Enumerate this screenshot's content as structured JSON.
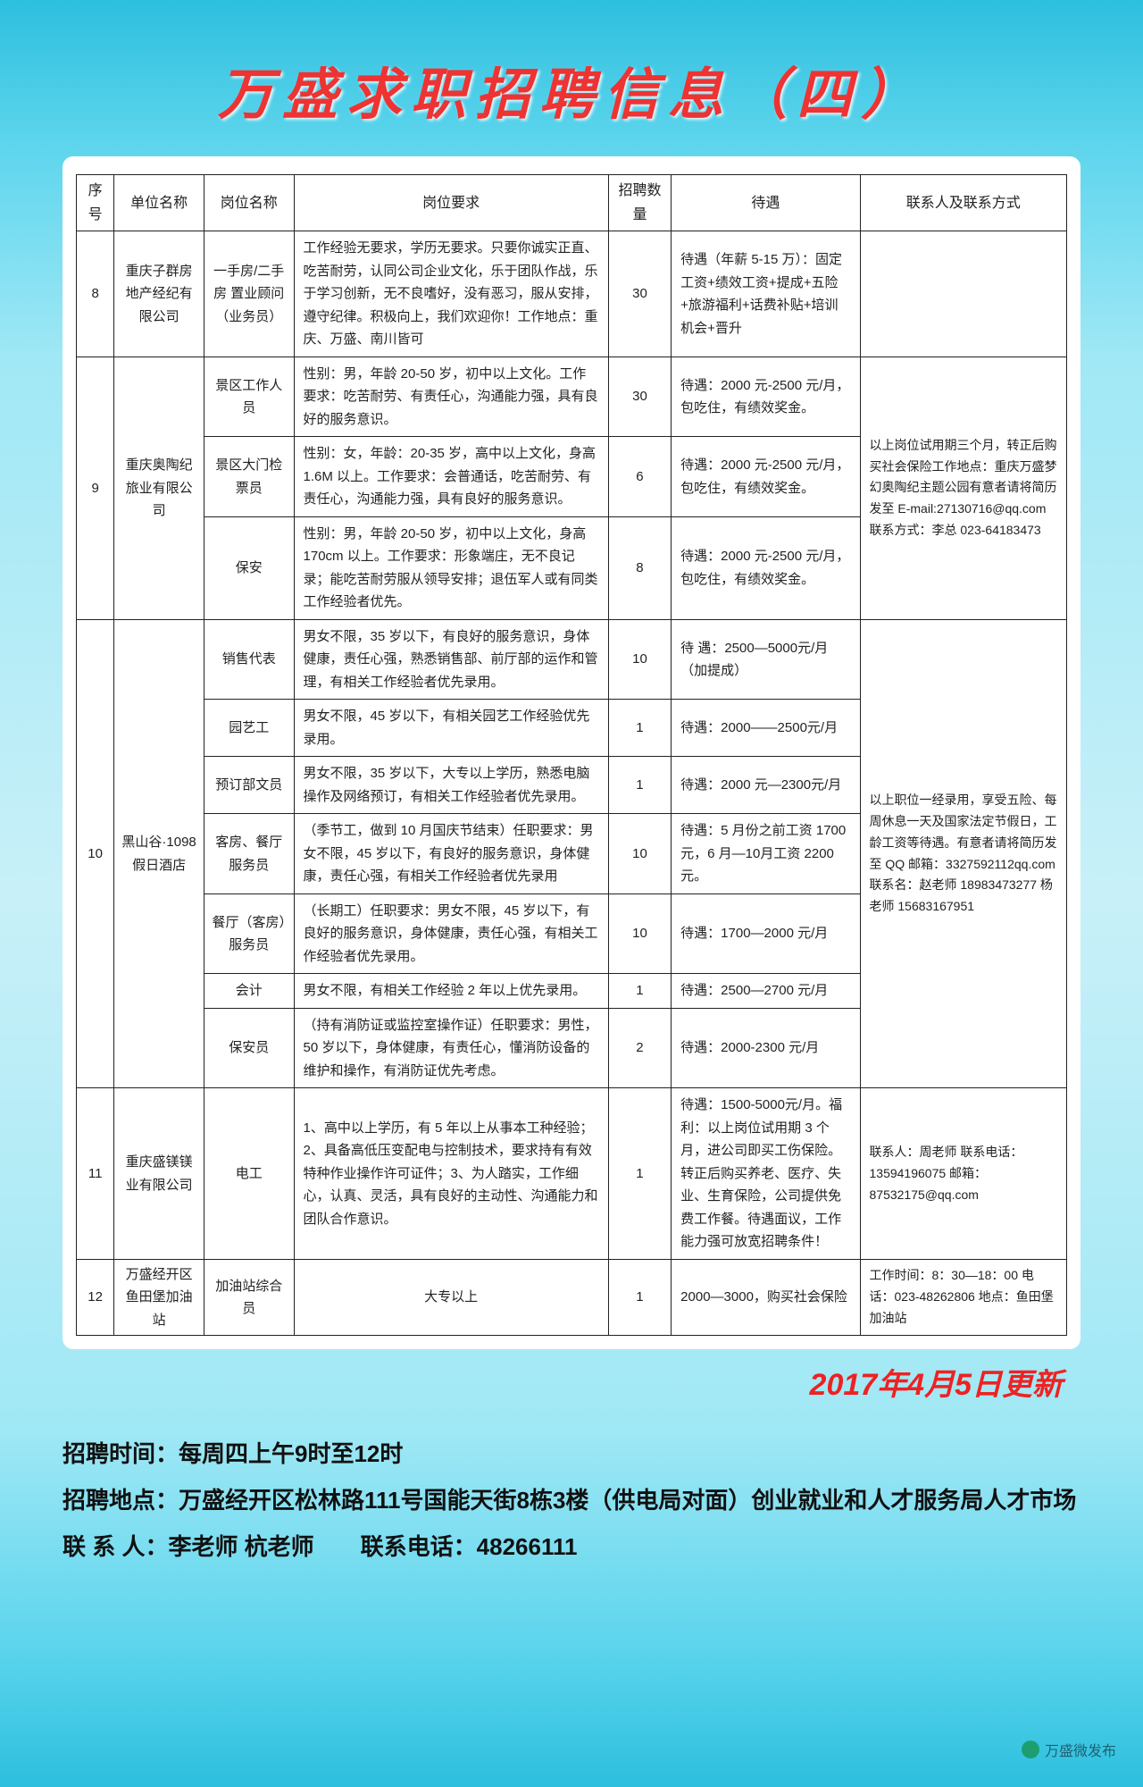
{
  "title": "万盛求职招聘信息（四）",
  "headers": {
    "seq": "序号",
    "unit": "单位名称",
    "pos": "岗位名称",
    "req": "岗位要求",
    "num": "招聘数量",
    "treat": "待遇",
    "contact": "联系人及联系方式"
  },
  "row8": {
    "seq": "8",
    "unit": "重庆子群房地产经纪有限公司",
    "pos": "一手房/二手房 置业顾问（业务员）",
    "req": "工作经验无要求，学历无要求。只要你诚实正直、吃苦耐劳，认同公司企业文化，乐于团队作战，乐于学习创新，无不良嗜好，没有恶习，服从安排，遵守纪律。积极向上，我们欢迎你！工作地点：重庆、万盛、南川皆可",
    "num": "30",
    "treat": "待遇（年薪 5-15 万）：固定工资+绩效工资+提成+五险+旅游福利+话费补贴+培训机会+晋升",
    "contact": ""
  },
  "row9": {
    "seq": "9",
    "unit": "重庆奥陶纪旅业有限公司",
    "p1": {
      "pos": "景区工作人员",
      "req": "性别：男，年龄 20-50 岁，初中以上文化。工作要求：吃苦耐劳、有责任心，沟通能力强，具有良好的服务意识。",
      "num": "30",
      "treat": "待遇：2000 元-2500 元/月，包吃住，有绩效奖金。"
    },
    "p2": {
      "pos": "景区大门检票员",
      "req": "性别：女，年龄：20-35 岁，高中以上文化，身高 1.6M 以上。工作要求：会普通话，吃苦耐劳、有责任心，沟通能力强，具有良好的服务意识。",
      "num": "6",
      "treat": "待遇：2000 元-2500 元/月，包吃住，有绩效奖金。"
    },
    "p3": {
      "pos": "保安",
      "req": "性别：男，年龄 20-50 岁，初中以上文化，身高 170cm 以上。工作要求：形象端庄，无不良记录；能吃苦耐劳服从领导安排；退伍军人或有同类工作经验者优先。",
      "num": "8",
      "treat": "待遇：2000 元-2500 元/月，包吃住，有绩效奖金。"
    },
    "contact": "以上岗位试用期三个月，转正后购买社会保险工作地点：重庆万盛梦幻奥陶纪主题公园有意者请将简历发至 E-mail:27130716@qq.com\n联系方式：李总 023-64183473"
  },
  "row10": {
    "seq": "10",
    "unit": "黑山谷·1098 假日酒店",
    "p1": {
      "pos": "销售代表",
      "req": "男女不限，35 岁以下，有良好的服务意识，身体健康，责任心强，熟悉销售部、前厅部的运作和管理，有相关工作经验者优先录用。",
      "num": "10",
      "treat": "待 遇：2500—5000元/月（加提成）"
    },
    "p2": {
      "pos": "园艺工",
      "req": "男女不限，45 岁以下，有相关园艺工作经验优先录用。",
      "num": "1",
      "treat": "待遇：2000——2500元/月"
    },
    "p3": {
      "pos": "预订部文员",
      "req": "男女不限，35 岁以下，大专以上学历，熟悉电脑操作及网络预订，有相关工作经验者优先录用。",
      "num": "1",
      "treat": "待遇：2000 元—2300元/月"
    },
    "p4": {
      "pos": "客房、餐厅服务员",
      "req": "（季节工，做到 10 月国庆节结束）任职要求：男女不限，45 岁以下，有良好的服务意识，身体健康，责任心强，有相关工作经验者优先录用",
      "num": "10",
      "treat": "待遇：5 月份之前工资 1700 元，6 月—10月工资 2200 元。"
    },
    "p5": {
      "pos": "餐厅（客房）服务员",
      "req": "（长期工）任职要求：男女不限，45 岁以下，有良好的服务意识，身体健康，责任心强，有相关工作经验者优先录用。",
      "num": "10",
      "treat": "待遇：1700—2000 元/月"
    },
    "p6": {
      "pos": "会计",
      "req": "男女不限，有相关工作经验 2 年以上优先录用。",
      "num": "1",
      "treat": "待遇：2500—2700 元/月"
    },
    "p7": {
      "pos": "保安员",
      "req": "（持有消防证或监控室操作证）任职要求：男性，50 岁以下，身体健康，有责任心，懂消防设备的维护和操作，有消防证优先考虑。",
      "num": "2",
      "treat": "待遇：2000-2300 元/月"
    },
    "contact": "以上职位一经录用，享受五险、每周休息一天及国家法定节假日，工龄工资等待遇。有意者请将简历发至 QQ 邮箱：3327592112qq.com\n联系名：赵老师 18983473277\n杨老师 15683167951"
  },
  "row11": {
    "seq": "11",
    "unit": "重庆盛镁镁业有限公司",
    "pos": "电工",
    "req": "1、高中以上学历，有 5 年以上从事本工种经验；2、具备高低压变配电与控制技术，要求持有有效特种作业操作许可证件；3、为人踏实，工作细心，认真、灵活，具有良好的主动性、沟通能力和团队合作意识。",
    "num": "1",
    "treat": "待遇：1500-5000元/月。福利：以上岗位试用期 3 个月，进公司即买工伤保险。转正后购买养老、医疗、失业、生育保险，公司提供免费工作餐。待遇面议，工作能力强可放宽招聘条件！",
    "contact": "联系人：周老师\n联系电话：13594196075\n邮箱：87532175@qq.com"
  },
  "row12": {
    "seq": "12",
    "unit": "万盛经开区鱼田堡加油站",
    "pos": "加油站综合员",
    "req": "大专以上",
    "num": "1",
    "treat": "2000—3000，购买社会保险",
    "contact": "工作时间：8：30—18：00 电话：023-48262806 地点：鱼田堡加油站"
  },
  "update_date": "2017年4月5日更新",
  "footer": {
    "l1": "招聘时间：每周四上午9时至12时",
    "l2": "招聘地点：万盛经开区松林路111号国能天街8栋3楼（供电局对面）创业就业和人才服务局人才市场",
    "l3": "联 系 人：李老师 杭老师　　联系电话：48266111"
  },
  "watermark": "万盛微发布"
}
